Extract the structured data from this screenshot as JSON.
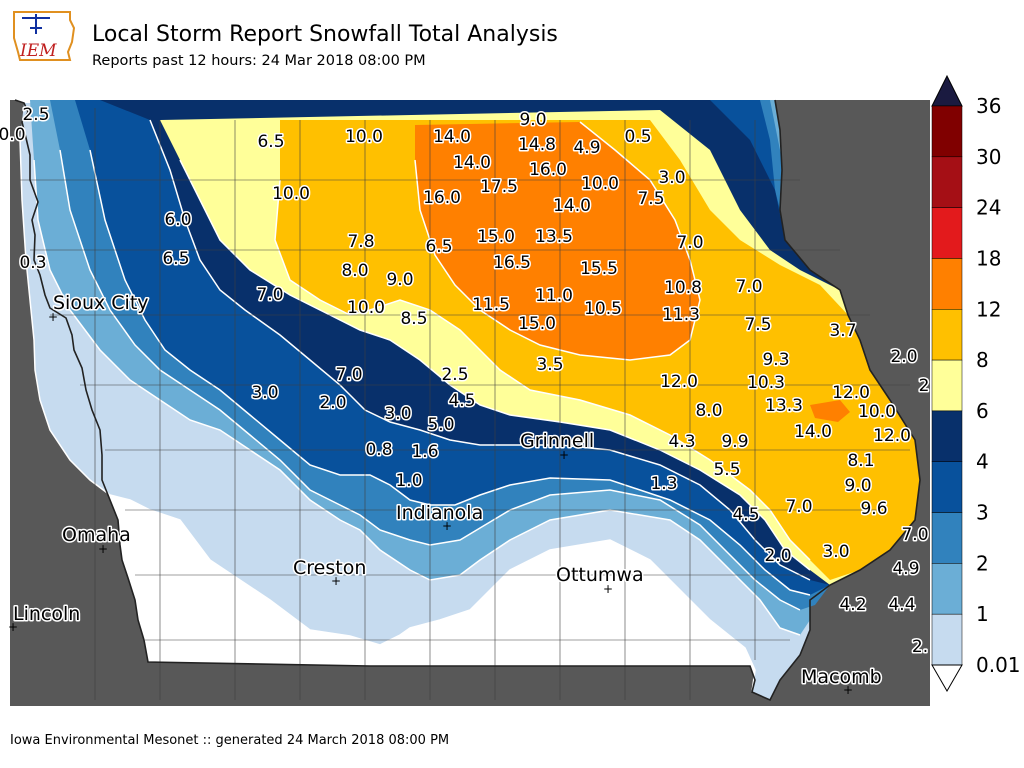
{
  "header": {
    "title": "Local Storm Report Snowfall Total Analysis",
    "subtitle": "Reports past 12 hours: 24 Mar 2018 08:00 PM",
    "logo_text": "IEM"
  },
  "footer": {
    "text": "Iowa Environmental Mesonet :: generated 24 March 2018 08:00 PM"
  },
  "legend": {
    "ticks": [
      "36",
      "30",
      "24",
      "18",
      "12",
      "8",
      "6",
      "4",
      "3",
      "2",
      "1",
      "0.01"
    ],
    "bins": [
      {
        "from": 0.01,
        "to": 1,
        "color": "#c6dbef"
      },
      {
        "from": 1,
        "to": 2,
        "color": "#6baed6"
      },
      {
        "from": 2,
        "to": 3,
        "color": "#3182bd"
      },
      {
        "from": 3,
        "to": 4,
        "color": "#08519c"
      },
      {
        "from": 4,
        "to": 6,
        "color": "#08306b"
      },
      {
        "from": 6,
        "to": 8,
        "color": "#ffff99"
      },
      {
        "from": 8,
        "to": 12,
        "color": "#ffc000"
      },
      {
        "from": 12,
        "to": 18,
        "color": "#ff8000"
      },
      {
        "from": 18,
        "to": 24,
        "color": "#e31a1c"
      },
      {
        "from": 24,
        "to": 30,
        "color": "#a50f15"
      },
      {
        "from": 30,
        "to": 36,
        "color": "#800000"
      }
    ],
    "under_color": "#ffffff",
    "over_color": "#1a1a40"
  },
  "cities": [
    {
      "name": "Sioux City"
    },
    {
      "name": "Grinnell"
    },
    {
      "name": "Omaha"
    },
    {
      "name": "Indianola"
    },
    {
      "name": "Creston"
    },
    {
      "name": "Ottumwa"
    },
    {
      "name": "Lincoln"
    },
    {
      "name": "Macomb"
    }
  ],
  "reports": [
    "2.5",
    "0.0",
    "9.0",
    "6.5",
    "10.0",
    "14.0",
    "14.8",
    "4.9",
    "0.5",
    "14.0",
    "16.0",
    "10.0",
    "3.0",
    "10.0",
    "16.0",
    "17.5",
    "14.0",
    "7.5",
    "6.0",
    "7.8",
    "6.5",
    "15.0",
    "13.5",
    "7.0",
    "0.3",
    "6.5",
    "8.0",
    "9.0",
    "16.5",
    "15.5",
    "7.0",
    "11.5",
    "11.0",
    "10.5",
    "10.8",
    "7.0",
    "10.0",
    "8.5",
    "15.0",
    "11.3",
    "7.5",
    "3.7",
    "3.5",
    "9.3",
    "2.0",
    "7.0",
    "2.5",
    "12.0",
    "10.3",
    "3.0",
    "2.0",
    "4.5",
    "13.3",
    "12.0",
    "3.0",
    "5.0",
    "8.0",
    "10.0",
    "14.0",
    "12.0",
    "0.8",
    "1.6",
    "4.3",
    "9.9",
    "1.0",
    "5.5",
    "8.1",
    "1.3",
    "9.0",
    "4.5",
    "7.0",
    "9.6",
    "7.0",
    "2.0",
    "3.0",
    "4.9",
    "4.2",
    "4.4",
    "2.",
    "2"
  ]
}
